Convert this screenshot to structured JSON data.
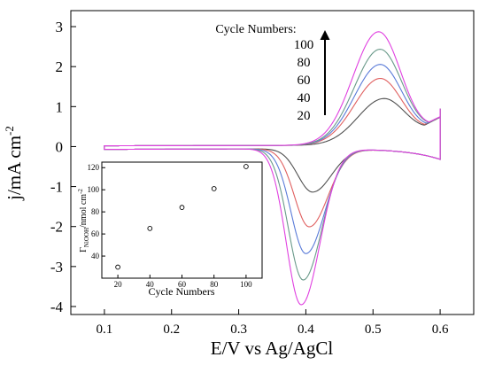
{
  "chart_data": [
    {
      "type": "line",
      "xlabel": "E/V vs Ag/AgCl",
      "ylabel": "j/mA cm",
      "ylabel_sup": "-2",
      "xlim": [
        0.05,
        0.65
      ],
      "ylim": [
        -4.2,
        3.4
      ],
      "xticks": [
        0.1,
        0.2,
        0.3,
        0.4,
        0.5,
        0.6
      ],
      "yticks": [
        -4,
        -3,
        -2,
        -1,
        0,
        1,
        2,
        3
      ],
      "grid": false,
      "annotation": {
        "title": "Cycle Numbers:",
        "labels": [
          "100",
          "80",
          "60",
          "40",
          "20"
        ]
      },
      "series": [
        {
          "color": "#505050",
          "peak_anodic": {
            "x": 0.515,
            "y": 1.12
          },
          "peak_cathodic": {
            "x": 0.41,
            "y": -1.08
          }
        },
        {
          "color": "#e06060",
          "peak_anodic": {
            "x": 0.51,
            "y": 1.63
          },
          "peak_cathodic": {
            "x": 0.405,
            "y": -1.95
          }
        },
        {
          "color": "#5a7bd8",
          "peak_anodic": {
            "x": 0.51,
            "y": 1.98
          },
          "peak_cathodic": {
            "x": 0.4,
            "y": -2.62
          }
        },
        {
          "color": "#6a9a8a",
          "peak_anodic": {
            "x": 0.51,
            "y": 2.36
          },
          "peak_cathodic": {
            "x": 0.396,
            "y": -3.28
          }
        },
        {
          "color": "#e040e0",
          "peak_anodic": {
            "x": 0.508,
            "y": 2.8
          },
          "peak_cathodic": {
            "x": 0.393,
            "y": -3.9
          }
        }
      ]
    },
    {
      "type": "scatter",
      "xlabel": "Cycle Numbers",
      "ylabel": "Γ",
      "ylabel_sub": "NiOOH",
      "ylabel_unit": "/nmol cm",
      "ylabel_sup": "-2",
      "xlim": [
        10,
        110
      ],
      "ylim": [
        20,
        125
      ],
      "xticks": [
        20,
        40,
        60,
        80,
        100
      ],
      "yticks": [
        40,
        60,
        80,
        100,
        120
      ],
      "points": [
        {
          "x": 20,
          "y": 30
        },
        {
          "x": 40,
          "y": 65
        },
        {
          "x": 60,
          "y": 84
        },
        {
          "x": 80,
          "y": 101
        },
        {
          "x": 100,
          "y": 121
        }
      ]
    }
  ]
}
